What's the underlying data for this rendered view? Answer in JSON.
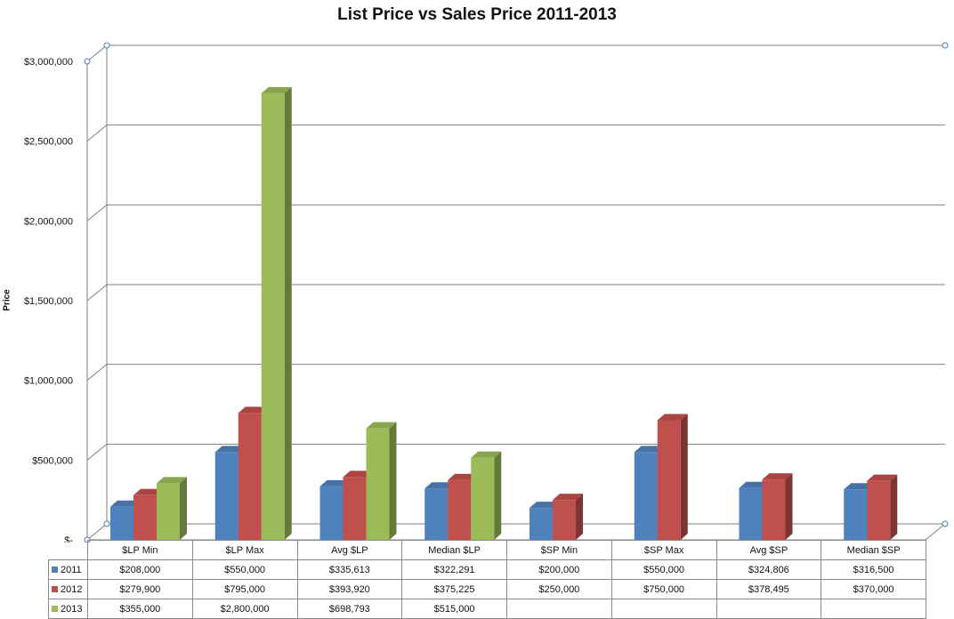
{
  "chart_data": {
    "type": "bar",
    "title": "List Price vs Sales Price 2011-2013",
    "ylabel": "Price",
    "xlabel": "",
    "ylim": [
      0,
      3000000
    ],
    "y_ticks": [
      {
        "value": 0,
        "label": "$-"
      },
      {
        "value": 500000,
        "label": "$500,000"
      },
      {
        "value": 1000000,
        "label": "$1,000,000"
      },
      {
        "value": 1500000,
        "label": "$1,500,000"
      },
      {
        "value": 2000000,
        "label": "$2,000,000"
      },
      {
        "value": 2500000,
        "label": "$2,500,000"
      },
      {
        "value": 3000000,
        "label": "$3,000,000"
      }
    ],
    "grid": true,
    "legend": "data table",
    "categories": [
      "$LP Min",
      "$LP Max",
      "Avg $LP",
      "Median $LP",
      "$SP Min",
      "$SP Max",
      "Avg $SP",
      "Median $SP"
    ],
    "series": [
      {
        "name": "2011",
        "color": "#4f81bd",
        "values": [
          208000,
          550000,
          335613,
          322291,
          200000,
          550000,
          324806,
          316500
        ],
        "labels": [
          "$208,000",
          "$550,000",
          "$335,613",
          "$322,291",
          "$200,000",
          "$550,000",
          "$324,806",
          "$316,500"
        ]
      },
      {
        "name": "2012",
        "color": "#c0504d",
        "values": [
          279900,
          795000,
          393920,
          375225,
          250000,
          750000,
          378495,
          370000
        ],
        "labels": [
          "$279,900",
          "$795,000",
          "$393,920",
          "$375,225",
          "$250,000",
          "$750,000",
          "$378,495",
          "$370,000"
        ]
      },
      {
        "name": "2013",
        "color": "#9bbb59",
        "values": [
          355000,
          2800000,
          698793,
          515000,
          null,
          null,
          null,
          null
        ],
        "labels": [
          "$355,000",
          "$2,800,000",
          "$698,793",
          "$515,000",
          "",
          "",
          "",
          ""
        ]
      }
    ]
  }
}
